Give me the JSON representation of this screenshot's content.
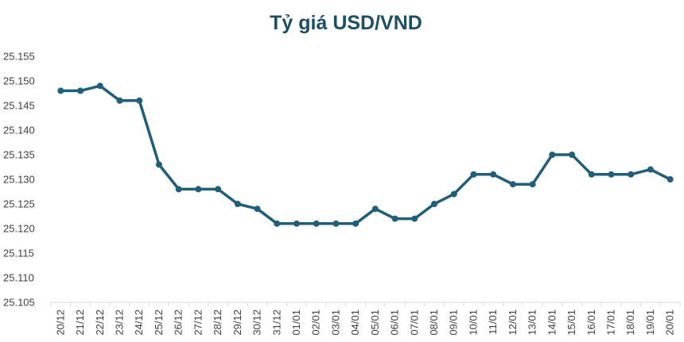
{
  "chart_data": {
    "type": "line",
    "title": "Tỷ giá USD/VND",
    "xlabel": "",
    "ylabel": "",
    "ylim": [
      25.105,
      25.155
    ],
    "yticks": [
      "25.155",
      "25.150",
      "25.145",
      "25.140",
      "25.135",
      "25.130",
      "25.125",
      "25.120",
      "25.115",
      "25.110",
      "25.105"
    ],
    "ytick_values": [
      25.155,
      25.15,
      25.145,
      25.14,
      25.135,
      25.13,
      25.125,
      25.12,
      25.115,
      25.11,
      25.105
    ],
    "grid": false,
    "legend": "none",
    "line_color": "#1f5f7a",
    "categories": [
      "20/12",
      "21/12",
      "22/12",
      "23/12",
      "24/12",
      "25/12",
      "26/12",
      "27/12",
      "28/12",
      "29/12",
      "30/12",
      "31/12",
      "01/01",
      "02/01",
      "03/01",
      "04/01",
      "05/01",
      "06/01",
      "07/01",
      "08/01",
      "09/01",
      "10/01",
      "11/01",
      "12/01",
      "13/01",
      "14/01",
      "15/01",
      "16/01",
      "17/01",
      "18/01",
      "19/01",
      "20/01"
    ],
    "series": [
      {
        "values": [
          25.148,
          25.148,
          25.149,
          25.146,
          25.146,
          25.133,
          25.128,
          25.128,
          25.128,
          25.125,
          25.124,
          25.121,
          25.121,
          25.121,
          25.121,
          25.121,
          25.124,
          25.122,
          25.122,
          25.125,
          25.127,
          25.131,
          25.131,
          25.129,
          25.129,
          25.135,
          25.135,
          25.131,
          25.131,
          25.131,
          25.132,
          25.13
        ]
      }
    ]
  }
}
